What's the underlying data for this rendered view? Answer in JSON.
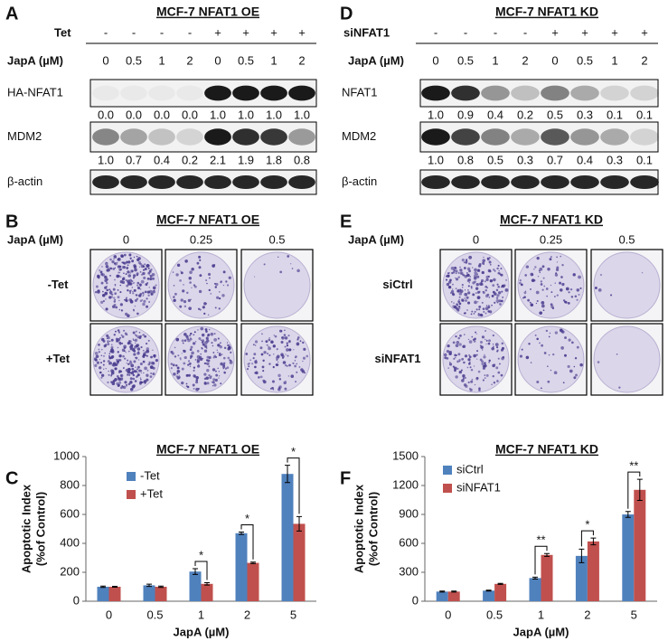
{
  "blot_a": {
    "label": "A",
    "title": "MCF-7 NFAT1 OE",
    "rows": [
      {
        "label": "Tet",
        "values": [
          "-",
          "-",
          "-",
          "-",
          "+",
          "+",
          "+",
          "+"
        ]
      },
      {
        "label": "JapA (µM)",
        "values": [
          "0",
          "0.5",
          "1",
          "2",
          "0",
          "0.5",
          "1",
          "2"
        ]
      }
    ],
    "bands": [
      {
        "name": "HA-NFAT1",
        "quant": [
          "0.0",
          "0.0",
          "0.0",
          "0.0",
          "1.0",
          "1.0",
          "1.0",
          "1.0"
        ]
      },
      {
        "name": "MDM2",
        "quant": [
          "1.0",
          "0.7",
          "0.4",
          "0.2",
          "2.1",
          "1.9",
          "1.8",
          "0.8"
        ]
      },
      {
        "name": "β-actin"
      }
    ]
  },
  "blot_d": {
    "label": "D",
    "title": "MCF-7 NFAT1 KD",
    "rows": [
      {
        "label": "siNFAT1",
        "values": [
          "-",
          "-",
          "-",
          "-",
          "+",
          "+",
          "+",
          "+"
        ]
      },
      {
        "label": "JapA (µM)",
        "values": [
          "0",
          "0.5",
          "1",
          "2",
          "0",
          "0.5",
          "1",
          "2"
        ]
      }
    ],
    "bands": [
      {
        "name": "NFAT1",
        "quant": [
          "1.0",
          "0.9",
          "0.4",
          "0.2",
          "0.5",
          "0.3",
          "0.1",
          "0.1"
        ]
      },
      {
        "name": "MDM2",
        "quant": [
          "1.0",
          "0.8",
          "0.5",
          "0.3",
          "0.7",
          "0.4",
          "0.3",
          "0.1"
        ]
      },
      {
        "name": "β-actin"
      }
    ]
  },
  "colony_b": {
    "label": "B",
    "title": "MCF-7 NFAT1 OE",
    "column_label": "JapA (µM)",
    "columns": [
      "0",
      "0.25",
      "0.5"
    ],
    "rows": [
      "-Tet",
      "+Tet"
    ]
  },
  "colony_e": {
    "label": "E",
    "title": "MCF-7 NFAT1 KD",
    "column_label": "JapA (µM)",
    "columns": [
      "0",
      "0.25",
      "0.5"
    ],
    "rows": [
      "siCtrl",
      "siNFAT1"
    ]
  },
  "chart_data": [
    {
      "type": "bar",
      "label": "C",
      "title": "MCF-7 NFAT1 OE",
      "ylabel": [
        "Apoptotic Index",
        "(%of Control)"
      ],
      "xlabel": "JapA (µM)",
      "categories": [
        "0",
        "0.5",
        "1",
        "2",
        "5"
      ],
      "series": [
        {
          "name": "-Tet",
          "color": "#4f81bd",
          "values": [
            100,
            110,
            205,
            470,
            880
          ],
          "errors": [
            5,
            8,
            20,
            8,
            60
          ]
        },
        {
          "name": "+Tet",
          "color": "#c0504d",
          "values": [
            100,
            100,
            120,
            265,
            535
          ],
          "errors": [
            3,
            5,
            8,
            5,
            50
          ]
        }
      ],
      "significance": [
        null,
        null,
        "*",
        "*",
        "*"
      ],
      "ylim": [
        0,
        1000
      ],
      "yticks": [
        0,
        200,
        400,
        600,
        800,
        1000
      ],
      "legend": "upper-left"
    },
    {
      "type": "bar",
      "label": "F",
      "title": "MCF-7 NFAT1 KD",
      "ylabel": [
        "Apoptotic Index",
        "(%of Control)"
      ],
      "xlabel": "JapA (µM)",
      "categories": [
        "0",
        "0.5",
        "1",
        "2",
        "5"
      ],
      "series": [
        {
          "name": "siCtrl",
          "color": "#4f81bd",
          "values": [
            100,
            110,
            240,
            470,
            900
          ],
          "errors": [
            5,
            5,
            10,
            70,
            30
          ]
        },
        {
          "name": "siNFAT1",
          "color": "#c0504d",
          "values": [
            100,
            180,
            480,
            620,
            1155
          ],
          "errors": [
            5,
            5,
            15,
            35,
            110
          ]
        }
      ],
      "significance": [
        null,
        null,
        "**",
        "*",
        "**"
      ],
      "ylim": [
        0,
        1500
      ],
      "yticks": [
        0,
        300,
        600,
        900,
        1200,
        1500
      ],
      "legend": "upper-left"
    }
  ]
}
